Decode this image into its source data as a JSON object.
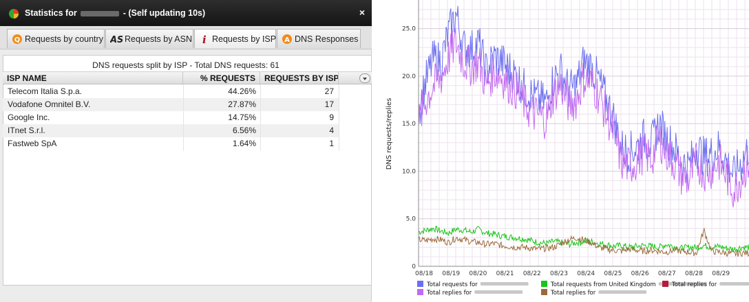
{
  "window": {
    "title_prefix": "Statistics for",
    "title_suffix": "- (Self updating 10s)",
    "close_label": "×"
  },
  "tabs": [
    {
      "label": "Requests by country",
      "icon": "q-orange-icon"
    },
    {
      "label": "Requests by ASN",
      "icon": "as-logo-icon"
    },
    {
      "label": "Requests by ISP",
      "icon": "info-i-icon"
    },
    {
      "label": "DNS Responses",
      "icon": "a-orange-icon"
    }
  ],
  "table": {
    "caption": "DNS requests split by ISP - Total DNS requests: 61",
    "columns": [
      "ISP NAME",
      "% REQUESTS",
      "REQUESTS BY ISP"
    ],
    "rows": [
      {
        "isp": "Telecom Italia S.p.a.",
        "pct": "44.26%",
        "count": "27"
      },
      {
        "isp": "Vodafone Omnitel B.V.",
        "pct": "27.87%",
        "count": "17"
      },
      {
        "isp": "Google Inc.",
        "pct": "14.75%",
        "count": "9"
      },
      {
        "isp": "ITnet S.r.l.",
        "pct": "6.56%",
        "count": "4"
      },
      {
        "isp": "Fastweb SpA",
        "pct": "1.64%",
        "count": "1"
      }
    ]
  },
  "chart_data": {
    "type": "line",
    "ylabel": "DNS requests/replies",
    "xlabel": "",
    "ylim": [
      0,
      28
    ],
    "yticks": [
      "0",
      "5.0",
      "10.0",
      "15.0",
      "20.0",
      "25.0"
    ],
    "x_ticks": [
      "08/18",
      "08/19",
      "08/20",
      "08/21",
      "08/22",
      "08/23",
      "08/24",
      "08/25",
      "08/26",
      "08/27",
      "08/28",
      "08/29"
    ],
    "grid": true,
    "legend_position": "bottom",
    "colors": {
      "total_requests_domain": "#6b6ef0",
      "total_replies_domain": "#c36af0",
      "total_requests_uk": "#19c419",
      "total_replies_other": "#b51c3c",
      "total_replies_uk": "#9a6a3c"
    },
    "series": [
      {
        "name": "Total requests for",
        "key": "total_requests_domain",
        "values": [
          16.5,
          19.5,
          21.8,
          21.5,
          24.5,
          26.5,
          23.0,
          22.8,
          23.5,
          20.5,
          22.0,
          21.5,
          20.8,
          20.0,
          18.8,
          18.0,
          17.5,
          17.2,
          19.8,
          20.5,
          18.5,
          19.0,
          21.5,
          21.0,
          19.5,
          17.5,
          15.5,
          12.5,
          12.0,
          12.5,
          13.5,
          12.8,
          15.0,
          13.5,
          12.5,
          11.0,
          10.5,
          12.5,
          11.5,
          11.8,
          12.5,
          11.0,
          9.5,
          11.0,
          12.5
        ]
      },
      {
        "name": "Total replies for",
        "key": "total_replies_domain",
        "values": [
          15.0,
          17.5,
          19.0,
          19.8,
          22.0,
          23.5,
          21.5,
          21.0,
          21.5,
          19.0,
          20.5,
          20.0,
          19.2,
          18.5,
          17.2,
          16.2,
          15.8,
          15.5,
          18.2,
          19.0,
          17.0,
          17.5,
          19.8,
          19.2,
          18.0,
          16.0,
          14.0,
          11.0,
          10.5,
          11.0,
          12.0,
          11.2,
          13.5,
          12.0,
          11.0,
          9.5,
          9.0,
          11.0,
          10.0,
          10.2,
          11.0,
          9.5,
          8.0,
          9.5,
          11.0
        ]
      },
      {
        "name": "Total requests from United Kingdom",
        "key": "total_requests_uk",
        "values": [
          3.6,
          3.8,
          4.0,
          3.7,
          3.5,
          3.9,
          3.8,
          3.6,
          3.9,
          3.5,
          3.4,
          3.2,
          3.1,
          3.0,
          2.9,
          2.7,
          2.5,
          2.4,
          2.6,
          2.5,
          2.3,
          2.5,
          2.6,
          2.6,
          2.4,
          2.3,
          2.1,
          2.2,
          2.0,
          2.1,
          2.2,
          2.1,
          2.0,
          2.3,
          2.1,
          1.9,
          2.0,
          2.0,
          2.2,
          2.0,
          2.1,
          1.9,
          1.8,
          2.0,
          2.0
        ]
      },
      {
        "name": "Total replies for",
        "key": "total_replies_other",
        "values": []
      },
      {
        "name": "Total replies for",
        "key": "total_replies_uk",
        "values": [
          2.8,
          2.7,
          2.9,
          2.8,
          2.5,
          3.0,
          2.8,
          2.6,
          2.5,
          2.3,
          2.4,
          2.2,
          2.1,
          2.0,
          2.0,
          1.9,
          1.8,
          1.9,
          2.0,
          2.4,
          2.8,
          3.0,
          2.8,
          2.5,
          2.0,
          1.8,
          1.7,
          1.6,
          1.8,
          1.7,
          1.6,
          1.7,
          1.6,
          1.5,
          1.7,
          1.6,
          1.5,
          1.4,
          3.8,
          1.6,
          1.5,
          1.4,
          1.3,
          1.4,
          1.4
        ]
      }
    ],
    "legend": [
      {
        "label": "Total requests for",
        "key": "total_requests_domain",
        "col": 0,
        "row": 0
      },
      {
        "label": "Total requests from United Kingdom",
        "key": "total_requests_uk",
        "col": 1,
        "row": 0
      },
      {
        "label": "Total replies for",
        "key": "total_replies_other",
        "col": 2,
        "row": 0
      },
      {
        "label": "Total replies for",
        "key": "total_replies_domain",
        "col": 0,
        "row": 1
      },
      {
        "label": "Total replies for",
        "key": "total_replies_uk",
        "col": 1,
        "row": 1
      }
    ]
  }
}
